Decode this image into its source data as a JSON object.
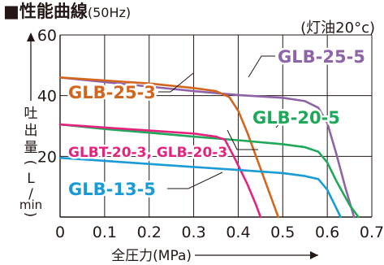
{
  "chart_data": {
    "type": "line",
    "title": "■性能曲線",
    "title_suffix": "(50Hz)",
    "note": "(灯油20°c)",
    "xlabel": "全圧力(MPa)",
    "ylabel_chars": [
      "吐",
      "出",
      "量",
      "(",
      "L",
      "/",
      "min",
      ")"
    ],
    "x_ticks": [
      "0",
      "0.1",
      "0.2",
      "0.3",
      "0.4",
      "0.5",
      "0.6",
      "0.7"
    ],
    "y_ticks": [
      "20",
      "40",
      "60"
    ],
    "xlim": [
      0,
      0.7
    ],
    "ylim": [
      0,
      60
    ],
    "grid": true,
    "series": [
      {
        "name": "GLB-25-5",
        "color": "#8e63a8",
        "points": [
          [
            0,
            46
          ],
          [
            0.1,
            44.5
          ],
          [
            0.2,
            43
          ],
          [
            0.3,
            41.5
          ],
          [
            0.4,
            40.2
          ],
          [
            0.5,
            39.3
          ],
          [
            0.55,
            38.2
          ],
          [
            0.58,
            36
          ],
          [
            0.6,
            31
          ],
          [
            0.62,
            21
          ],
          [
            0.64,
            10
          ],
          [
            0.66,
            0
          ]
        ]
      },
      {
        "name": "GLB-25-3",
        "color": "#d3661f",
        "points": [
          [
            0,
            46
          ],
          [
            0.1,
            45
          ],
          [
            0.2,
            44
          ],
          [
            0.3,
            42.5
          ],
          [
            0.35,
            41.5
          ],
          [
            0.38,
            39.5
          ],
          [
            0.4,
            35
          ],
          [
            0.42,
            28
          ],
          [
            0.45,
            16
          ],
          [
            0.48,
            4
          ],
          [
            0.49,
            0
          ]
        ]
      },
      {
        "name": "GLB-20-5",
        "color": "#1fa85a",
        "points": [
          [
            0,
            30.5
          ],
          [
            0.1,
            29
          ],
          [
            0.2,
            27.8
          ],
          [
            0.3,
            26.5
          ],
          [
            0.4,
            25.3
          ],
          [
            0.5,
            24
          ],
          [
            0.55,
            23
          ],
          [
            0.58,
            21.5
          ],
          [
            0.6,
            18
          ],
          [
            0.62,
            12
          ],
          [
            0.65,
            4
          ],
          [
            0.67,
            0
          ]
        ]
      },
      {
        "name": "GLBT-20-3, GLB-20-3",
        "color": "#e4237e",
        "points": [
          [
            0,
            30.5
          ],
          [
            0.1,
            29.5
          ],
          [
            0.2,
            28.5
          ],
          [
            0.3,
            27.5
          ],
          [
            0.35,
            26.5
          ],
          [
            0.37,
            25.5
          ],
          [
            0.39,
            20
          ],
          [
            0.42,
            11
          ],
          [
            0.44,
            4
          ],
          [
            0.45,
            0
          ]
        ]
      },
      {
        "name": "GLB-13-5",
        "color": "#199bd7",
        "points": [
          [
            0,
            19.5
          ],
          [
            0.1,
            18.5
          ],
          [
            0.2,
            17.5
          ],
          [
            0.3,
            16.5
          ],
          [
            0.4,
            15.5
          ],
          [
            0.5,
            14.5
          ],
          [
            0.55,
            13.5
          ],
          [
            0.58,
            12.5
          ],
          [
            0.6,
            9
          ],
          [
            0.62,
            3
          ],
          [
            0.63,
            0
          ]
        ]
      }
    ]
  }
}
